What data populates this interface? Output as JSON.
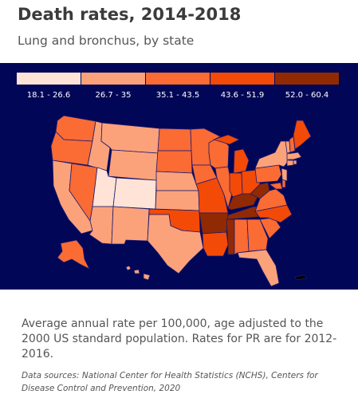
{
  "header": {
    "title": "Death rates, 2014-2018",
    "subtitle": "Lung and bronchus, by state"
  },
  "legend": {
    "bins": [
      {
        "label": "18.1 - 26.6",
        "color": "#fee3d6"
      },
      {
        "label": "26.7 - 35",
        "color": "#fca27a"
      },
      {
        "label": "35.1 - 43.5",
        "color": "#fb6b34"
      },
      {
        "label": "43.6 - 51.9",
        "color": "#f34a08"
      },
      {
        "label": "52.0 - 60.4",
        "color": "#912a02"
      }
    ]
  },
  "colors": {
    "background": "#020657",
    "border": "#1a1a70"
  },
  "footer": {
    "note": "Average annual rate per 100,000, age adjusted to the 2000 US standard population. Rates for PR are for 2012-2016.",
    "sources": "Data sources: National Center for Health Statistics (NCHS), Centers for Disease Control and Prevention, 2020"
  }
}
